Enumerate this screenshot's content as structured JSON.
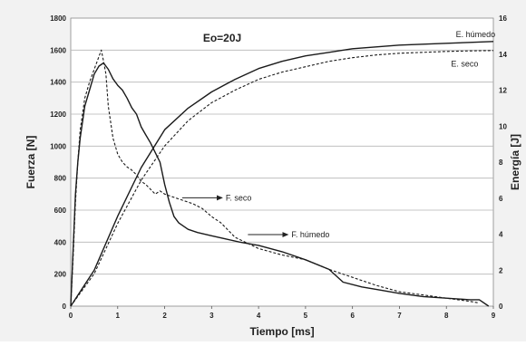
{
  "chart_data": {
    "type": "line",
    "title": "Eo=20J",
    "xlabel": "Tiempo [ms]",
    "ylabel": "Fuerza [N]",
    "y2label": "Energía [J]",
    "xlim": [
      0,
      9
    ],
    "ylim": [
      0,
      1800
    ],
    "y2lim": [
      0,
      16
    ],
    "xticks": [
      "0",
      "1",
      "2",
      "3",
      "4",
      "5",
      "6",
      "7",
      "8",
      "9"
    ],
    "yticks": [
      "0",
      "200",
      "400",
      "600",
      "800",
      "1000",
      "1200",
      "1400",
      "1600",
      "1800"
    ],
    "y2ticks": [
      "0",
      "2",
      "4",
      "6",
      "8",
      "10",
      "12",
      "14",
      "16"
    ],
    "grid": true,
    "legend": "none",
    "series": [
      {
        "name": "F. húmedo",
        "axis": "left",
        "style": "solid",
        "x": [
          0,
          0.05,
          0.1,
          0.15,
          0.2,
          0.3,
          0.4,
          0.5,
          0.6,
          0.7,
          0.8,
          0.9,
          1.0,
          1.1,
          1.2,
          1.3,
          1.4,
          1.5,
          1.6,
          1.7,
          1.8,
          1.9,
          2.0,
          2.1,
          2.2,
          2.3,
          2.5,
          2.7,
          3.0,
          3.3,
          3.6,
          4.0,
          4.5,
          5.0,
          5.5,
          5.8,
          6.2,
          6.6,
          7.0,
          7.5,
          8.0,
          8.5,
          8.7,
          8.9
        ],
        "y": [
          0,
          350,
          700,
          900,
          1050,
          1250,
          1350,
          1450,
          1500,
          1520,
          1480,
          1420,
          1380,
          1350,
          1300,
          1240,
          1200,
          1120,
          1070,
          1020,
          960,
          900,
          760,
          650,
          560,
          520,
          480,
          460,
          440,
          420,
          400,
          380,
          340,
          290,
          230,
          150,
          120,
          100,
          80,
          60,
          50,
          40,
          40,
          0
        ]
      },
      {
        "name": "F. seco",
        "axis": "left",
        "style": "dashed",
        "x": [
          0,
          0.05,
          0.1,
          0.15,
          0.2,
          0.3,
          0.4,
          0.5,
          0.6,
          0.65,
          0.7,
          0.75,
          0.8,
          0.85,
          0.9,
          1.0,
          1.1,
          1.2,
          1.3,
          1.4,
          1.5,
          1.6,
          1.7,
          1.8,
          1.9,
          2.0,
          2.2,
          2.4,
          2.6,
          2.8,
          3.0,
          3.2,
          3.5,
          4.0,
          4.5,
          5.0,
          5.5,
          6.0,
          6.5,
          7.0,
          7.5,
          8.0,
          8.5,
          8.7
        ],
        "y": [
          0,
          300,
          650,
          900,
          1100,
          1300,
          1400,
          1480,
          1560,
          1600,
          1530,
          1450,
          1250,
          1150,
          1050,
          950,
          900,
          870,
          850,
          820,
          780,
          760,
          730,
          700,
          720,
          700,
          680,
          660,
          640,
          610,
          560,
          520,
          430,
          360,
          320,
          290,
          230,
          180,
          130,
          90,
          70,
          50,
          30,
          20
        ]
      },
      {
        "name": "E. húmedo",
        "axis": "right",
        "style": "solid",
        "x": [
          0,
          0.5,
          1,
          1.5,
          2,
          2.5,
          3,
          3.5,
          4,
          4.5,
          5,
          5.5,
          6,
          6.5,
          7,
          7.5,
          8,
          8.5,
          9
        ],
        "y": [
          0,
          2.0,
          5.0,
          7.7,
          9.8,
          11.0,
          11.9,
          12.6,
          13.2,
          13.6,
          13.9,
          14.1,
          14.3,
          14.4,
          14.5,
          14.55,
          14.6,
          14.65,
          14.7
        ]
      },
      {
        "name": "E. seco",
        "axis": "right",
        "style": "dashed",
        "x": [
          0,
          0.5,
          1,
          1.5,
          2,
          2.5,
          3,
          3.5,
          4,
          4.5,
          5,
          5.5,
          6,
          6.5,
          7,
          7.5,
          8,
          8.5,
          9
        ],
        "y": [
          0,
          1.8,
          4.6,
          7.0,
          8.9,
          10.3,
          11.3,
          12.0,
          12.6,
          13.0,
          13.3,
          13.6,
          13.8,
          13.95,
          14.05,
          14.1,
          14.15,
          14.18,
          14.2
        ]
      }
    ],
    "annotations": [
      {
        "text": "E. húmedo",
        "x": 8.2,
        "y": 14.95,
        "axis": "right"
      },
      {
        "text": "E. seco",
        "x": 8.1,
        "y": 13.3,
        "axis": "right"
      },
      {
        "text": "F. seco",
        "x": 3.3,
        "y": 660,
        "axis": "left"
      },
      {
        "text": "F. húmedo",
        "x": 4.7,
        "y": 430,
        "axis": "left"
      }
    ]
  }
}
